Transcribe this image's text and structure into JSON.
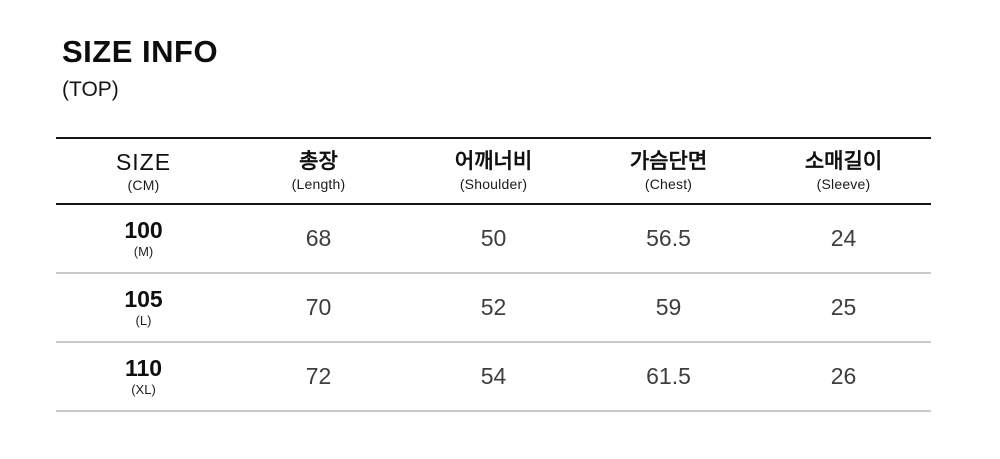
{
  "header": {
    "title": "SIZE INFO",
    "subtitle": "(TOP)"
  },
  "table": {
    "columns": [
      {
        "label": "SIZE",
        "sublabel": "(CM)"
      },
      {
        "label": "총장",
        "sublabel": "(Length)"
      },
      {
        "label": "어깨너비",
        "sublabel": "(Shoulder)"
      },
      {
        "label": "가슴단면",
        "sublabel": "(Chest)"
      },
      {
        "label": "소매길이",
        "sublabel": "(Sleeve)"
      }
    ],
    "rows": [
      {
        "size": "100",
        "size_label": "(M)",
        "values": [
          "68",
          "50",
          "56.5",
          "24"
        ]
      },
      {
        "size": "105",
        "size_label": "(L)",
        "values": [
          "70",
          "52",
          "59",
          "25"
        ]
      },
      {
        "size": "110",
        "size_label": "(XL)",
        "values": [
          "72",
          "54",
          "61.5",
          "26"
        ]
      }
    ]
  },
  "colors": {
    "background": "#ffffff",
    "text_primary": "#111111",
    "text_values": "#3e3e3e",
    "rule_dark": "#161616",
    "rule_light": "#c9c9c9"
  }
}
